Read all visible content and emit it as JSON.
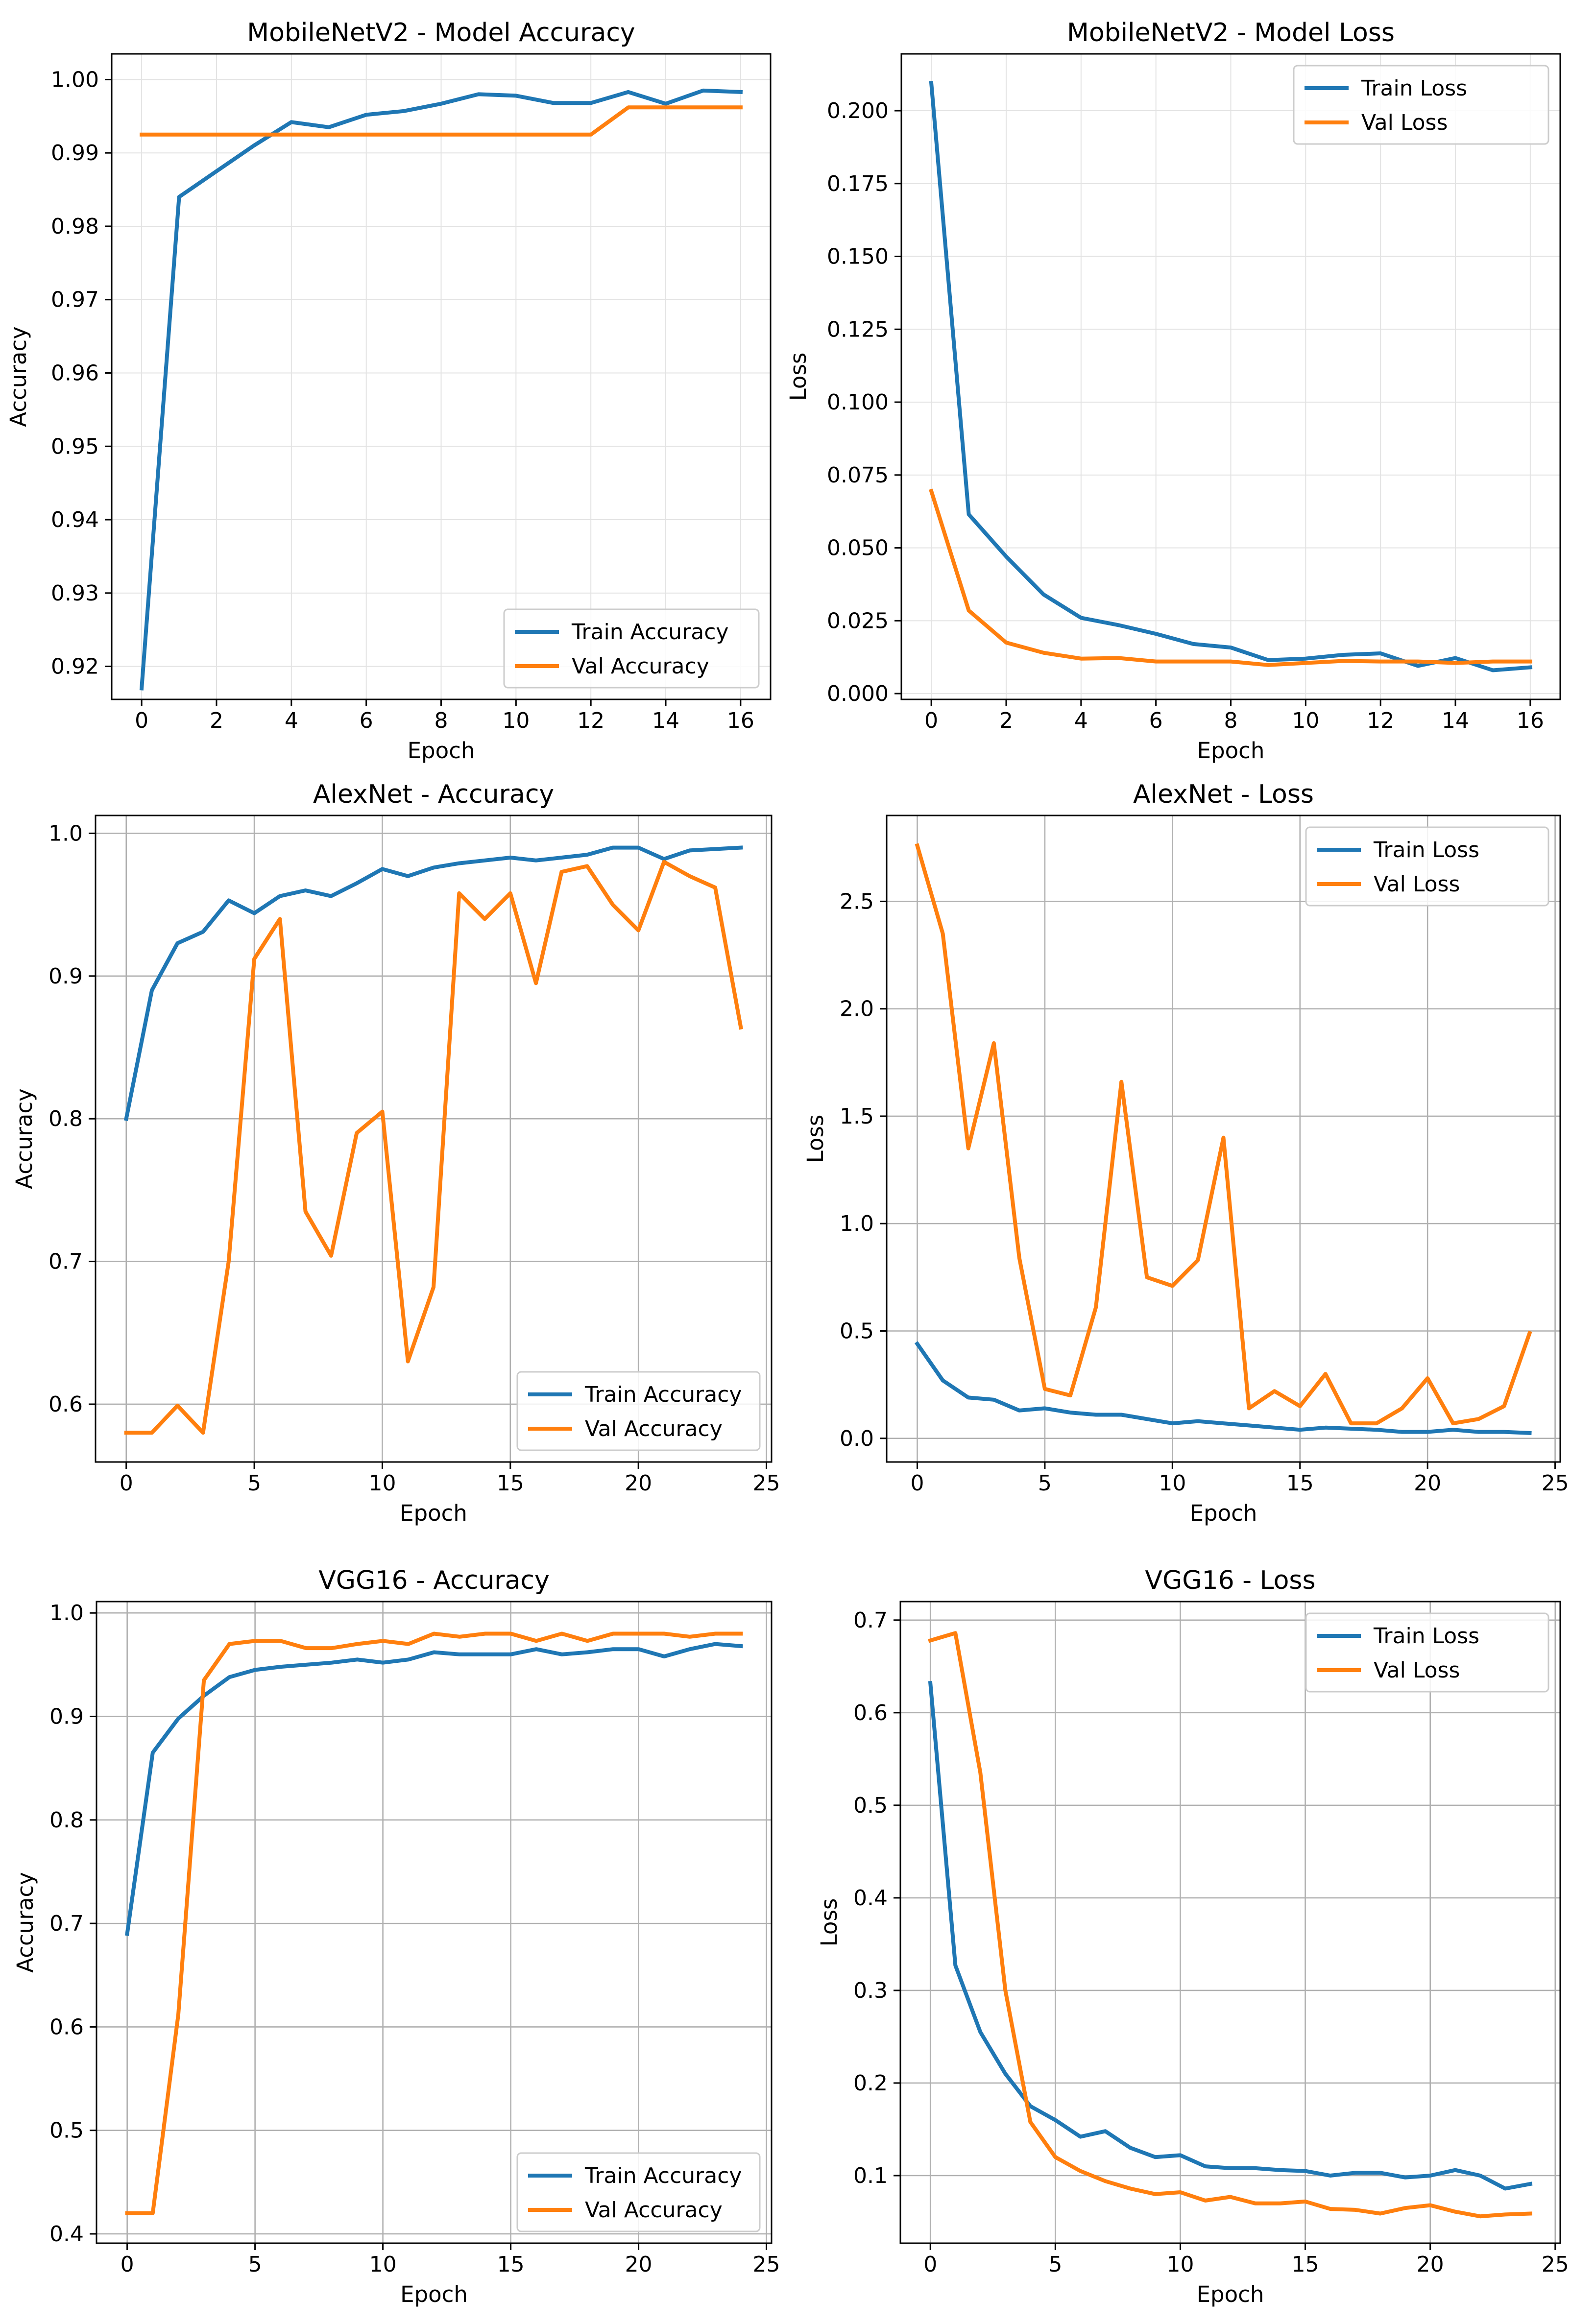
{
  "colors": {
    "train": "#1f77b4",
    "val": "#ff7f0e",
    "grid": "#b0b0b0",
    "axis": "#000000"
  },
  "chart_data": [
    {
      "type": "line",
      "title": "MobileNetV2 - Model Accuracy",
      "xlabel": "Epoch",
      "ylabel": "Accuracy",
      "xlim": [
        -0.8,
        16.8
      ],
      "ylim": [
        0.9155,
        1.0035
      ],
      "xticks": [
        0,
        2,
        4,
        6,
        8,
        10,
        12,
        14,
        16
      ],
      "xtick_labels": [
        "0",
        "2",
        "4",
        "6",
        "8",
        "10",
        "12",
        "14",
        "16"
      ],
      "yticks": [
        0.92,
        0.93,
        0.94,
        0.95,
        0.96,
        0.97,
        0.98,
        0.99,
        1.0
      ],
      "ytick_labels": [
        "0.92",
        "0.93",
        "0.94",
        "0.95",
        "0.96",
        "0.97",
        "0.98",
        "0.99",
        "1.00"
      ],
      "grid_style": "light",
      "legend_position": "lower-right",
      "series": [
        {
          "name": "Train Accuracy",
          "color": "train",
          "x": [
            0,
            1,
            2,
            3,
            4,
            5,
            6,
            7,
            8,
            9,
            10,
            11,
            12,
            13,
            14,
            15,
            16
          ],
          "y": [
            0.917,
            0.984,
            0.9875,
            0.991,
            0.9942,
            0.9935,
            0.9952,
            0.9957,
            0.9967,
            0.998,
            0.9978,
            0.9968,
            0.9968,
            0.9983,
            0.9967,
            0.9985,
            0.9983
          ]
        },
        {
          "name": "Val Accuracy",
          "color": "val",
          "x": [
            0,
            1,
            2,
            3,
            4,
            5,
            6,
            7,
            8,
            9,
            10,
            11,
            12,
            13,
            14,
            15,
            16
          ],
          "y": [
            0.9925,
            0.9925,
            0.9925,
            0.9925,
            0.9925,
            0.9925,
            0.9925,
            0.9925,
            0.9925,
            0.9925,
            0.9925,
            0.9925,
            0.9925,
            0.9962,
            0.9962,
            0.9962,
            0.9962
          ]
        }
      ]
    },
    {
      "type": "line",
      "title": "MobileNetV2 - Model Loss",
      "xlabel": "Epoch",
      "ylabel": "Loss",
      "xlim": [
        -0.8,
        16.8
      ],
      "ylim": [
        -0.002,
        0.2195
      ],
      "xticks": [
        0,
        2,
        4,
        6,
        8,
        10,
        12,
        14,
        16
      ],
      "xtick_labels": [
        "0",
        "2",
        "4",
        "6",
        "8",
        "10",
        "12",
        "14",
        "16"
      ],
      "yticks": [
        0.0,
        0.025,
        0.05,
        0.075,
        0.1,
        0.125,
        0.15,
        0.175,
        0.2
      ],
      "ytick_labels": [
        "0.000",
        "0.025",
        "0.050",
        "0.075",
        "0.100",
        "0.125",
        "0.150",
        "0.175",
        "0.200"
      ],
      "grid_style": "light",
      "legend_position": "upper-right",
      "series": [
        {
          "name": "Train Loss",
          "color": "train",
          "x": [
            0,
            1,
            2,
            3,
            4,
            5,
            6,
            7,
            8,
            9,
            10,
            11,
            12,
            13,
            14,
            15,
            16
          ],
          "y": [
            0.2095,
            0.0615,
            0.047,
            0.034,
            0.026,
            0.0235,
            0.0205,
            0.017,
            0.0158,
            0.0115,
            0.012,
            0.0133,
            0.0138,
            0.0095,
            0.0122,
            0.008,
            0.009
          ]
        },
        {
          "name": "Val Loss",
          "color": "val",
          "x": [
            0,
            1,
            2,
            3,
            4,
            5,
            6,
            7,
            8,
            9,
            10,
            11,
            12,
            13,
            14,
            15,
            16
          ],
          "y": [
            0.0695,
            0.0285,
            0.0175,
            0.014,
            0.012,
            0.0122,
            0.011,
            0.011,
            0.011,
            0.0098,
            0.0105,
            0.0112,
            0.011,
            0.011,
            0.0105,
            0.011,
            0.011
          ]
        }
      ]
    },
    {
      "type": "line",
      "title": "AlexNet - Accuracy",
      "xlabel": "Epoch",
      "ylabel": "Accuracy",
      "xlim": [
        -1.2,
        25.2
      ],
      "ylim": [
        0.5595,
        1.0125
      ],
      "xticks": [
        0,
        5,
        10,
        15,
        20,
        25
      ],
      "xtick_labels": [
        "0",
        "5",
        "10",
        "15",
        "20",
        "25"
      ],
      "yticks": [
        0.6,
        0.7,
        0.8,
        0.9,
        1.0
      ],
      "ytick_labels": [
        "0.6",
        "0.7",
        "0.8",
        "0.9",
        "1.0"
      ],
      "grid_style": "dark",
      "legend_position": "lower-right",
      "series": [
        {
          "name": "Train Accuracy",
          "color": "train",
          "x": [
            0,
            1,
            2,
            3,
            4,
            5,
            6,
            7,
            8,
            9,
            10,
            11,
            12,
            13,
            14,
            15,
            16,
            17,
            18,
            19,
            20,
            21,
            22,
            23,
            24
          ],
          "y": [
            0.8,
            0.89,
            0.923,
            0.931,
            0.953,
            0.944,
            0.956,
            0.96,
            0.956,
            0.965,
            0.975,
            0.97,
            0.976,
            0.979,
            0.981,
            0.983,
            0.981,
            0.983,
            0.985,
            0.99,
            0.99,
            0.982,
            0.988,
            0.989,
            0.99
          ]
        },
        {
          "name": "Val Accuracy",
          "color": "val",
          "x": [
            0,
            1,
            2,
            3,
            4,
            5,
            6,
            7,
            8,
            9,
            10,
            11,
            12,
            13,
            14,
            15,
            16,
            17,
            18,
            19,
            20,
            21,
            22,
            23,
            24
          ],
          "y": [
            0.58,
            0.58,
            0.599,
            0.58,
            0.7,
            0.912,
            0.94,
            0.735,
            0.704,
            0.79,
            0.805,
            0.63,
            0.682,
            0.958,
            0.94,
            0.958,
            0.895,
            0.973,
            0.977,
            0.95,
            0.932,
            0.98,
            0.97,
            0.962,
            0.864
          ]
        }
      ]
    },
    {
      "type": "line",
      "title": "AlexNet - Loss",
      "xlabel": "Epoch",
      "ylabel": "Loss",
      "xlim": [
        -1.2,
        25.2
      ],
      "ylim": [
        -0.11,
        2.9
      ],
      "xticks": [
        0,
        5,
        10,
        15,
        20,
        25
      ],
      "xtick_labels": [
        "0",
        "5",
        "10",
        "15",
        "20",
        "25"
      ],
      "yticks": [
        0.0,
        0.5,
        1.0,
        1.5,
        2.0,
        2.5
      ],
      "ytick_labels": [
        "0.0",
        "0.5",
        "1.0",
        "1.5",
        "2.0",
        "2.5"
      ],
      "grid_style": "dark",
      "legend_position": "upper-right",
      "series": [
        {
          "name": "Train Loss",
          "color": "train",
          "x": [
            0,
            1,
            2,
            3,
            4,
            5,
            6,
            7,
            8,
            9,
            10,
            11,
            12,
            13,
            14,
            15,
            16,
            17,
            18,
            19,
            20,
            21,
            22,
            23,
            24
          ],
          "y": [
            0.44,
            0.27,
            0.19,
            0.18,
            0.13,
            0.14,
            0.12,
            0.11,
            0.11,
            0.09,
            0.07,
            0.08,
            0.07,
            0.06,
            0.05,
            0.04,
            0.05,
            0.045,
            0.04,
            0.03,
            0.03,
            0.04,
            0.03,
            0.03,
            0.025
          ]
        },
        {
          "name": "Val Loss",
          "color": "val",
          "x": [
            0,
            1,
            2,
            3,
            4,
            5,
            6,
            7,
            8,
            9,
            10,
            11,
            12,
            13,
            14,
            15,
            16,
            17,
            18,
            19,
            20,
            21,
            22,
            23,
            24
          ],
          "y": [
            2.76,
            2.35,
            1.35,
            1.84,
            0.84,
            0.23,
            0.2,
            0.61,
            1.66,
            0.75,
            0.71,
            0.83,
            1.4,
            0.14,
            0.22,
            0.15,
            0.3,
            0.07,
            0.07,
            0.14,
            0.28,
            0.07,
            0.09,
            0.15,
            0.49
          ]
        }
      ]
    },
    {
      "type": "line",
      "title": "VGG16 - Accuracy",
      "xlabel": "Epoch",
      "ylabel": "Accuracy",
      "xlim": [
        -1.2,
        25.2
      ],
      "ylim": [
        0.391,
        1.011
      ],
      "xticks": [
        0,
        5,
        10,
        15,
        20,
        25
      ],
      "xtick_labels": [
        "0",
        "5",
        "10",
        "15",
        "20",
        "25"
      ],
      "yticks": [
        0.4,
        0.5,
        0.6,
        0.7,
        0.8,
        0.9,
        1.0
      ],
      "ytick_labels": [
        "0.4",
        "0.5",
        "0.6",
        "0.7",
        "0.8",
        "0.9",
        "1.0"
      ],
      "grid_style": "dark",
      "legend_position": "lower-right",
      "series": [
        {
          "name": "Train Accuracy",
          "color": "train",
          "x": [
            0,
            1,
            2,
            3,
            4,
            5,
            6,
            7,
            8,
            9,
            10,
            11,
            12,
            13,
            14,
            15,
            16,
            17,
            18,
            19,
            20,
            21,
            22,
            23,
            24
          ],
          "y": [
            0.69,
            0.865,
            0.898,
            0.92,
            0.938,
            0.945,
            0.948,
            0.95,
            0.952,
            0.955,
            0.952,
            0.955,
            0.962,
            0.96,
            0.96,
            0.96,
            0.965,
            0.96,
            0.962,
            0.965,
            0.965,
            0.958,
            0.965,
            0.97,
            0.968
          ]
        },
        {
          "name": "Val Accuracy",
          "color": "val",
          "x": [
            0,
            1,
            2,
            3,
            4,
            5,
            6,
            7,
            8,
            9,
            10,
            11,
            12,
            13,
            14,
            15,
            16,
            17,
            18,
            19,
            20,
            21,
            22,
            23,
            24
          ],
          "y": [
            0.42,
            0.42,
            0.612,
            0.935,
            0.97,
            0.973,
            0.973,
            0.966,
            0.966,
            0.97,
            0.973,
            0.97,
            0.98,
            0.977,
            0.98,
            0.98,
            0.973,
            0.98,
            0.973,
            0.98,
            0.98,
            0.98,
            0.977,
            0.98,
            0.98
          ]
        }
      ]
    },
    {
      "type": "line",
      "title": "VGG16 - Loss",
      "xlabel": "Epoch",
      "ylabel": "Loss",
      "xlim": [
        -1.2,
        25.2
      ],
      "ylim": [
        0.027,
        0.72
      ],
      "xticks": [
        0,
        5,
        10,
        15,
        20,
        25
      ],
      "xtick_labels": [
        "0",
        "5",
        "10",
        "15",
        "20",
        "25"
      ],
      "yticks": [
        0.1,
        0.2,
        0.3,
        0.4,
        0.5,
        0.6,
        0.7
      ],
      "ytick_labels": [
        "0.1",
        "0.2",
        "0.3",
        "0.4",
        "0.5",
        "0.6",
        "0.7"
      ],
      "grid_style": "dark",
      "legend_position": "upper-right",
      "series": [
        {
          "name": "Train Loss",
          "color": "train",
          "x": [
            0,
            1,
            2,
            3,
            4,
            5,
            6,
            7,
            8,
            9,
            10,
            11,
            12,
            13,
            14,
            15,
            16,
            17,
            18,
            19,
            20,
            21,
            22,
            23,
            24
          ],
          "y": [
            0.632,
            0.327,
            0.255,
            0.21,
            0.175,
            0.16,
            0.142,
            0.148,
            0.13,
            0.12,
            0.122,
            0.11,
            0.108,
            0.108,
            0.106,
            0.105,
            0.1,
            0.103,
            0.103,
            0.098,
            0.1,
            0.106,
            0.1,
            0.086,
            0.091
          ]
        },
        {
          "name": "Val Loss",
          "color": "val",
          "x": [
            0,
            1,
            2,
            3,
            4,
            5,
            6,
            7,
            8,
            9,
            10,
            11,
            12,
            13,
            14,
            15,
            16,
            17,
            18,
            19,
            20,
            21,
            22,
            23,
            24
          ],
          "y": [
            0.678,
            0.686,
            0.535,
            0.3,
            0.158,
            0.12,
            0.105,
            0.094,
            0.086,
            0.08,
            0.082,
            0.073,
            0.077,
            0.07,
            0.07,
            0.072,
            0.064,
            0.063,
            0.059,
            0.065,
            0.068,
            0.061,
            0.056,
            0.058,
            0.059
          ]
        }
      ]
    }
  ]
}
